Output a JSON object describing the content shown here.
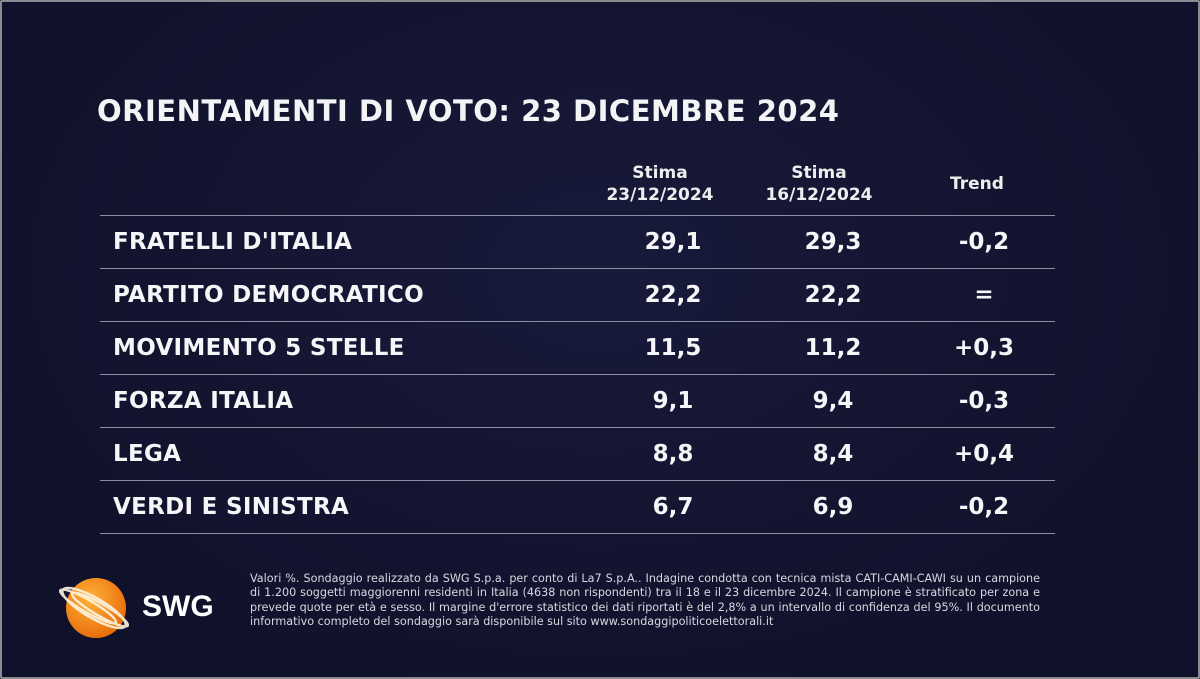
{
  "title": "ORIENTAMENTI DI VOTO: 23 DICEMBRE 2024",
  "columns": [
    {
      "line1": "Stima",
      "line2": "23/12/2024"
    },
    {
      "line1": "Stima",
      "line2": "16/12/2024"
    },
    {
      "line1": "Trend",
      "line2": ""
    }
  ],
  "rows": [
    {
      "party": "FRATELLI D'ITALIA",
      "current": "29,1",
      "previous": "29,3",
      "trend": "-0,2"
    },
    {
      "party": "PARTITO DEMOCRATICO",
      "current": "22,2",
      "previous": "22,2",
      "trend": "="
    },
    {
      "party": "MOVIMENTO 5 STELLE",
      "current": "11,5",
      "previous": "11,2",
      "trend": "+0,3"
    },
    {
      "party": "FORZA ITALIA",
      "current": "9,1",
      "previous": "9,4",
      "trend": "-0,3"
    },
    {
      "party": "LEGA",
      "current": "8,8",
      "previous": "8,4",
      "trend": "+0,4"
    },
    {
      "party": "VERDI E SINISTRA",
      "current": "6,7",
      "previous": "6,9",
      "trend": "-0,2"
    }
  ],
  "logo": {
    "text": "SWG",
    "icon": "orange-globe-logo",
    "color": "#f39a1c"
  },
  "footnote": "Valori %. Sondaggio realizzato da SWG S.p.a. per conto di La7 S.p.A.. Indagine condotta con tecnica mista CATI-CAMI-CAWI su un campione di 1.200 soggetti maggiorenni residenti in Italia (4638 non rispondenti) tra il 18 e il 23 dicembre 2024. Il campione è stratificato per zona e prevede quote per età e sesso. Il margine d'errore statistico dei dati riportati è del 2,8% a un intervallo di confidenza del 95%. Il documento informativo completo del sondaggio sarà disponibile sul sito www.sondaggipoliticoelettorali.it"
}
